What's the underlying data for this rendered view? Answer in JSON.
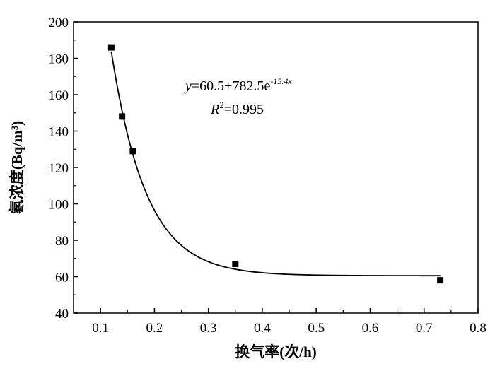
{
  "chart_data": {
    "type": "scatter",
    "xlabel": "换气率(次/h)",
    "ylabel": "氡浓度(Bq/m³)",
    "xlim": [
      0.05,
      0.8
    ],
    "ylim": [
      40,
      200
    ],
    "x_ticks": [
      "0.1",
      "0.2",
      "0.3",
      "0.4",
      "0.5",
      "0.6",
      "0.7",
      "0.8"
    ],
    "y_ticks": [
      "40",
      "60",
      "80",
      "100",
      "120",
      "140",
      "160",
      "180",
      "200"
    ],
    "series": [
      {
        "points": [
          {
            "x": 0.12,
            "y": 186
          },
          {
            "x": 0.14,
            "y": 148
          },
          {
            "x": 0.16,
            "y": 129
          },
          {
            "x": 0.35,
            "y": 67
          },
          {
            "x": 0.73,
            "y": 58
          }
        ]
      }
    ],
    "fit": {
      "equation_parts": {
        "y": "y",
        "eq": "=60.5+782.5e",
        "exp": "-15.4x"
      },
      "r2_parts": {
        "R": "R",
        "sup": "2",
        "eq": "=0.995"
      },
      "a": 60.5,
      "b": 782.5,
      "k": -15.4,
      "x_start": 0.12,
      "x_end": 0.73
    }
  }
}
